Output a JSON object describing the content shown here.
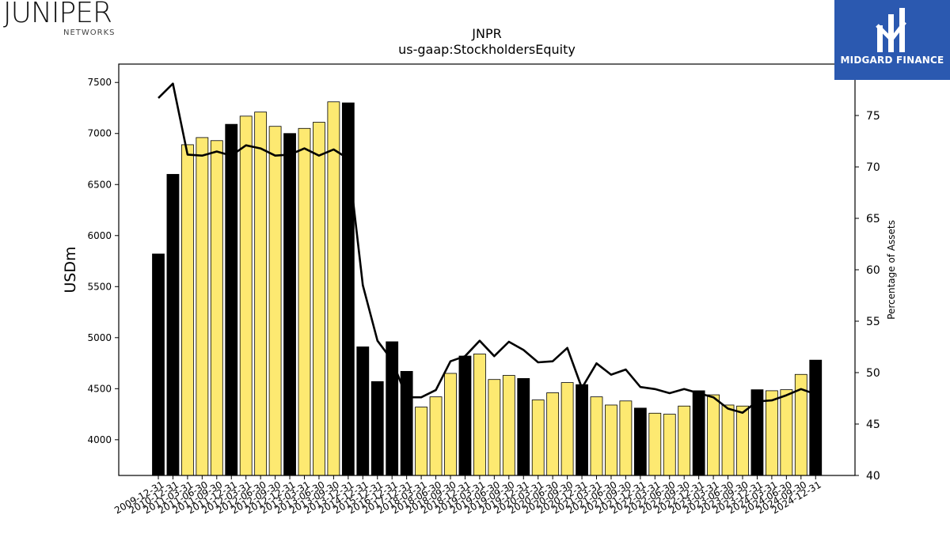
{
  "branding": {
    "company_word": "JUNIPER",
    "company_sub": "NETWORKS",
    "partner": "MIDGARD FINANCE",
    "partner_color": "#2b59b0"
  },
  "chart_data": {
    "type": "bar",
    "title": "JNPR",
    "subtitle": "us-gaap:StockholdersEquity",
    "ylabel": "USDm",
    "y2label": "Percentage of Assets",
    "ylim": [
      3650,
      7680
    ],
    "y2lim": [
      40,
      80
    ],
    "yticks": [
      4000,
      4500,
      5000,
      5500,
      6000,
      6500,
      7000,
      7500
    ],
    "y2ticks": [
      40,
      45,
      50,
      55,
      60,
      65,
      70,
      75
    ],
    "colors": {
      "annual": "#000000",
      "quarterly": "#fde971",
      "line": "#000000"
    },
    "categories": [
      "2009-12-31",
      "2010-12-31",
      "2011-03-31",
      "2011-06-30",
      "2011-09-30",
      "2011-12-31",
      "2012-03-31",
      "2012-06-30",
      "2012-09-30",
      "2012-12-31",
      "2013-03-31",
      "2013-06-30",
      "2013-09-30",
      "2013-12-31",
      "2014-12-31",
      "2015-12-31",
      "2016-12-31",
      "2017-12-31",
      "2018-03-31",
      "2018-06-30",
      "2018-09-30",
      "2018-12-31",
      "2019-03-31",
      "2019-06-30",
      "2019-09-30",
      "2019-12-31",
      "2020-03-31",
      "2020-06-30",
      "2020-09-30",
      "2020-12-31",
      "2021-03-31",
      "2021-06-30",
      "2021-09-30",
      "2021-12-31",
      "2022-03-31",
      "2022-06-30",
      "2022-09-30",
      "2022-12-31",
      "2023-03-31",
      "2023-06-30",
      "2023-09-30",
      "2023-12-31",
      "2024-03-31",
      "2024-06-30",
      "2024-09-30",
      "2024-12-31"
    ],
    "series": [
      {
        "kind": "bar",
        "values": [
          5820,
          6600,
          6890,
          6960,
          6930,
          7090,
          7170,
          7210,
          7070,
          7000,
          7050,
          7110,
          7310,
          7300,
          4910,
          4570,
          4960,
          4670,
          4320,
          4420,
          4650,
          4820,
          4840,
          4590,
          4630,
          4600,
          4390,
          4460,
          4560,
          4540,
          4420,
          4340,
          4380,
          4310,
          4260,
          4250,
          4330,
          4480,
          4440,
          4340,
          4330,
          4490,
          4480,
          4490,
          4640,
          4780
        ],
        "annual_flags": [
          1,
          1,
          0,
          0,
          0,
          1,
          0,
          0,
          0,
          1,
          0,
          0,
          0,
          1,
          1,
          1,
          1,
          1,
          0,
          0,
          0,
          1,
          0,
          0,
          0,
          1,
          0,
          0,
          0,
          1,
          0,
          0,
          0,
          1,
          0,
          0,
          0,
          1,
          0,
          0,
          0,
          1,
          0,
          0,
          0,
          1
        ]
      },
      {
        "kind": "line",
        "axis": "right",
        "values": [
          76.7,
          78.1,
          71.2,
          71.1,
          71.5,
          71.1,
          72.1,
          71.8,
          71.1,
          71.2,
          71.8,
          71.1,
          71.7,
          70.8,
          58.5,
          53.1,
          51.2,
          47.6,
          47.6,
          48.3,
          51.1,
          51.6,
          53.1,
          51.6,
          53.0,
          52.2,
          51.0,
          51.1,
          52.4,
          48.5,
          50.9,
          49.8,
          50.3,
          48.6,
          48.4,
          48.0,
          48.4,
          48.0,
          47.6,
          46.5,
          46.1,
          47.2,
          47.3,
          47.8,
          48.4,
          47.9
        ]
      }
    ]
  }
}
